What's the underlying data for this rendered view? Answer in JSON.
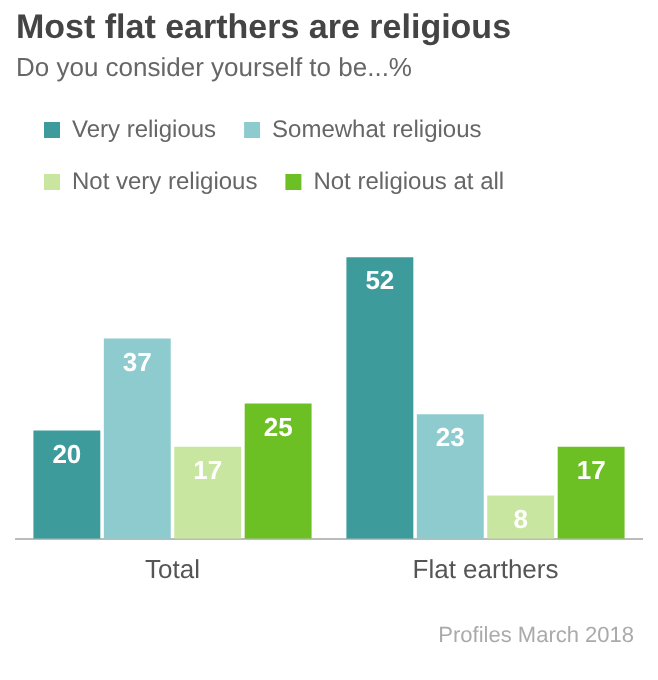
{
  "chart_data": {
    "type": "bar",
    "title": "Most flat earthers are religious",
    "subtitle": "Do you consider yourself to be...%",
    "categories": [
      "Total",
      "Flat earthers"
    ],
    "series": [
      {
        "name": "Very religious",
        "color": "#3d9b9b",
        "values": [
          20,
          52
        ]
      },
      {
        "name": "Somewhat religious",
        "color": "#8ecbcf",
        "values": [
          37,
          23
        ]
      },
      {
        "name": "Not very religious",
        "color": "#c8e6a0",
        "values": [
          17,
          8
        ]
      },
      {
        "name": "Not religious at all",
        "color": "#6cc024",
        "values": [
          25,
          17
        ]
      }
    ],
    "data_labels": true,
    "legend": "top",
    "grid": false,
    "tick_labels": "x",
    "annotations": [
      "Profiles March 2018"
    ]
  }
}
